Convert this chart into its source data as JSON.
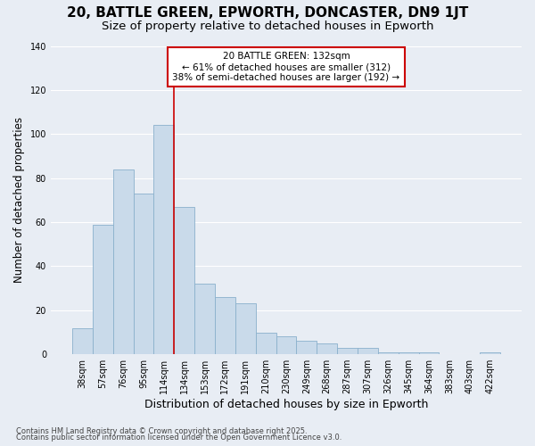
{
  "title": "20, BATTLE GREEN, EPWORTH, DONCASTER, DN9 1JT",
  "subtitle": "Size of property relative to detached houses in Epworth",
  "xlabel": "Distribution of detached houses by size in Epworth",
  "ylabel": "Number of detached properties",
  "bar_color": "#c9daea",
  "bar_edge_color": "#8ab0cc",
  "background_color": "#e8edf4",
  "plot_bg_color": "#e8edf4",
  "categories": [
    "38sqm",
    "57sqm",
    "76sqm",
    "95sqm",
    "114sqm",
    "134sqm",
    "153sqm",
    "172sqm",
    "191sqm",
    "210sqm",
    "230sqm",
    "249sqm",
    "268sqm",
    "287sqm",
    "307sqm",
    "326sqm",
    "345sqm",
    "364sqm",
    "383sqm",
    "403sqm",
    "422sqm"
  ],
  "values": [
    12,
    59,
    84,
    73,
    104,
    67,
    32,
    26,
    23,
    10,
    8,
    6,
    5,
    3,
    3,
    1,
    1,
    1,
    0,
    0,
    1
  ],
  "red_line_x": 5.0,
  "annotation_text": "20 BATTLE GREEN: 132sqm\n← 61% of detached houses are smaller (312)\n38% of semi-detached houses are larger (192) →",
  "annotation_box_color": "#ffffff",
  "annotation_box_edge_color": "#cc0000",
  "red_line_color": "#cc0000",
  "ylim": [
    0,
    140
  ],
  "yticks": [
    0,
    20,
    40,
    60,
    80,
    100,
    120,
    140
  ],
  "footnote1": "Contains HM Land Registry data © Crown copyright and database right 2025.",
  "footnote2": "Contains public sector information licensed under the Open Government Licence v3.0.",
  "grid_color": "#ffffff",
  "title_fontsize": 11,
  "subtitle_fontsize": 9.5,
  "xlabel_fontsize": 9,
  "ylabel_fontsize": 8.5,
  "tick_fontsize": 7,
  "annotation_fontsize": 7.5,
  "footnote_fontsize": 6
}
